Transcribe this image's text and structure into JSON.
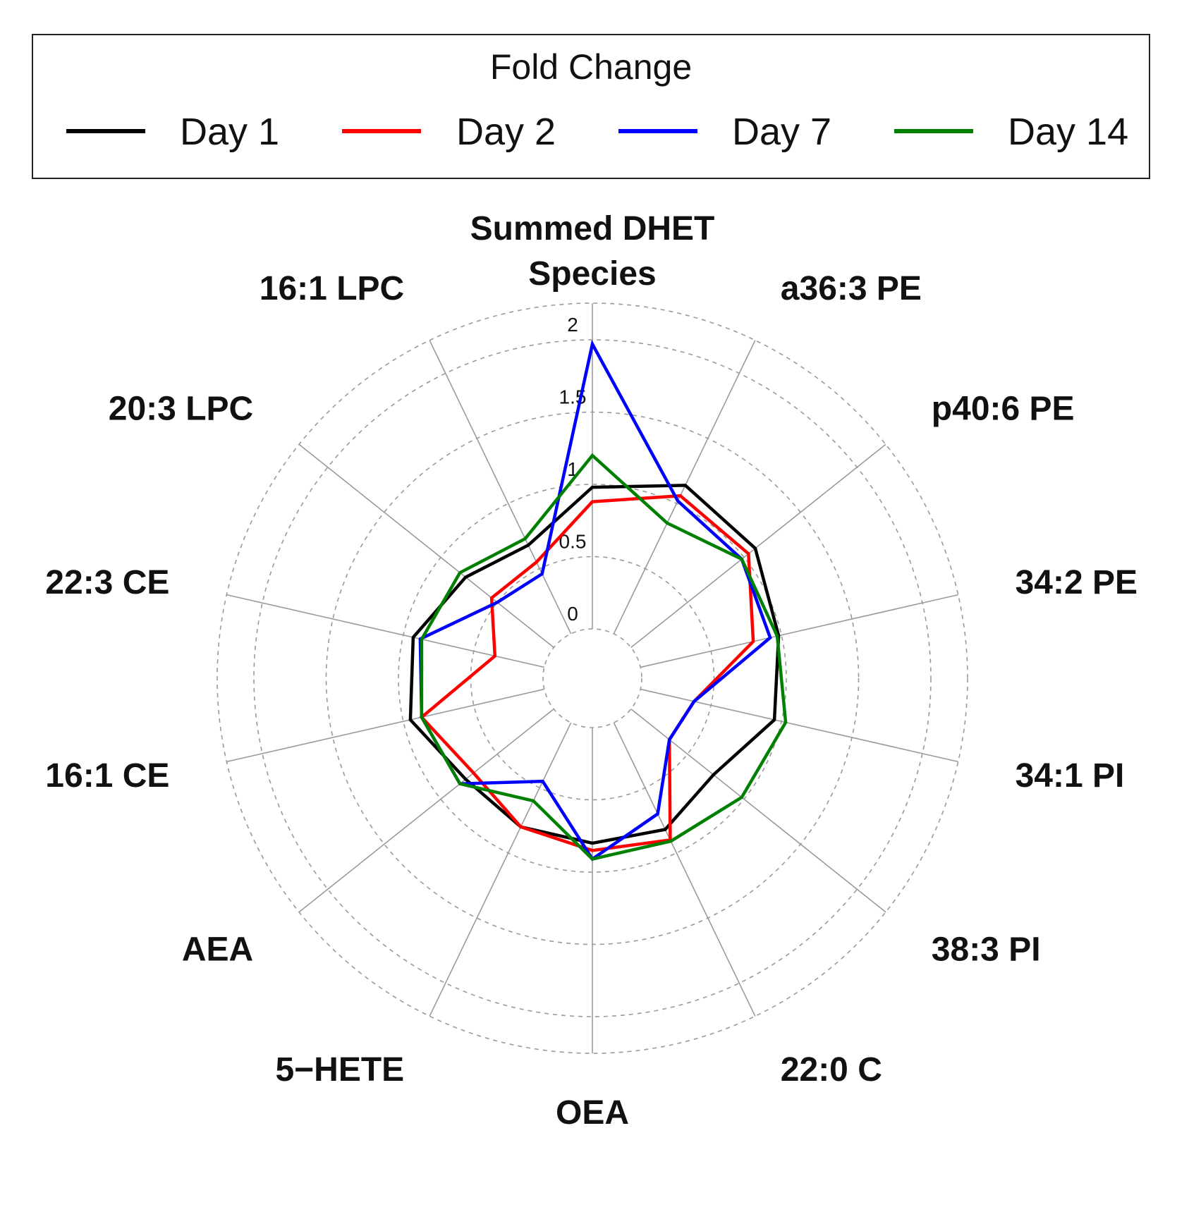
{
  "legend": {
    "title": "Fold Change",
    "entries": [
      {
        "label": "Day 1",
        "color": "#000000"
      },
      {
        "label": "Day 2",
        "color": "#ff0000"
      },
      {
        "label": "Day 7",
        "color": "#0000ff"
      },
      {
        "label": "Day 14",
        "color": "#008000"
      }
    ]
  },
  "chart_data": {
    "type": "radar",
    "title": "",
    "legend_title": "Fold Change",
    "legend_placement": "top",
    "r_range": [
      0,
      2
    ],
    "r_ticks": [
      0,
      0.5,
      1,
      1.5,
      2
    ],
    "r_tick_labels": [
      "0",
      "0.5",
      "1",
      "1.5",
      "2"
    ],
    "grid": true,
    "categories": [
      "Summed DHET Species",
      "a36:3 PE",
      "p40:6 PE",
      "34:2 PE",
      "34:1 PI",
      "38:3 PI",
      "22:0 C",
      "OEA",
      "5−HETE",
      "AEA",
      "16:1 CE",
      "22:3 CE",
      "20:3 LPC",
      "16:1 LPC"
    ],
    "series": [
      {
        "name": "Day 1",
        "color": "#000000",
        "values": [
          0.98,
          1.14,
          1.1,
          0.98,
          0.95,
          0.73,
          0.82,
          0.8,
          0.8,
          0.78,
          0.95,
          0.93,
          0.78,
          0.68
        ]
      },
      {
        "name": "Day 2",
        "color": "#ff0000",
        "values": [
          0.88,
          1.06,
          1.04,
          0.8,
          0.38,
          0.34,
          0.9,
          0.85,
          0.8,
          0.71,
          0.87,
          0.35,
          0.55,
          0.55
        ]
      },
      {
        "name": "Day 7",
        "color": "#0000ff",
        "values": [
          1.97,
          1.02,
          0.98,
          0.92,
          0.38,
          0.34,
          0.7,
          0.91,
          0.45,
          0.83,
          0.87,
          0.88,
          0.5,
          0.46
        ]
      },
      {
        "name": "Day 14",
        "color": "#008000",
        "values": [
          1.2,
          0.85,
          0.98,
          0.97,
          1.03,
          0.98,
          0.91,
          0.91,
          0.6,
          0.83,
          0.87,
          0.87,
          0.83,
          0.73
        ]
      }
    ]
  }
}
